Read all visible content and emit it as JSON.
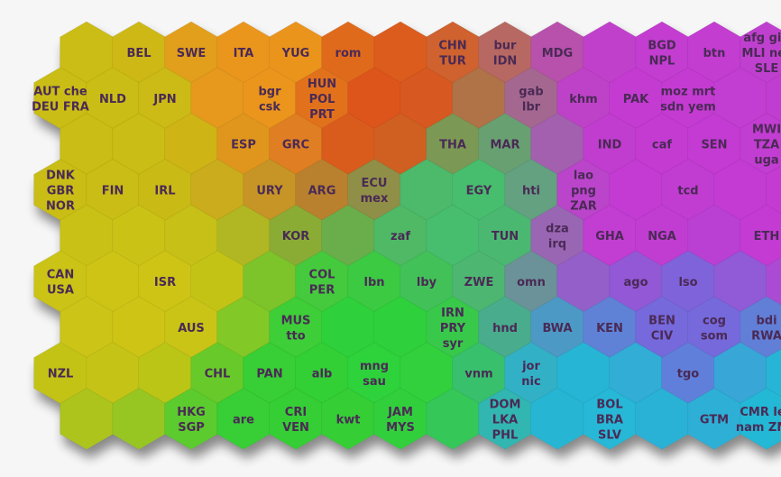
{
  "chart_data": {
    "type": "heatmap",
    "title": "",
    "grid": {
      "cols": 15,
      "rows": 9,
      "layout": "hexagonal"
    },
    "cells": [
      {
        "col": 1,
        "row": 0,
        "labels": [
          "BEL"
        ]
      },
      {
        "col": 2,
        "row": 0,
        "labels": [
          "SWE"
        ]
      },
      {
        "col": 3,
        "row": 0,
        "labels": [
          "ITA"
        ]
      },
      {
        "col": 4,
        "row": 0,
        "labels": [
          "YUG"
        ]
      },
      {
        "col": 5,
        "row": 0,
        "labels": [
          "rom"
        ]
      },
      {
        "col": 7,
        "row": 0,
        "labels": [
          "CHN",
          "TUR"
        ]
      },
      {
        "col": 8,
        "row": 0,
        "labels": [
          "bur",
          "IDN"
        ]
      },
      {
        "col": 9,
        "row": 0,
        "labels": [
          "MDG"
        ]
      },
      {
        "col": 11,
        "row": 0,
        "labels": [
          "BGD",
          "NPL"
        ]
      },
      {
        "col": 12,
        "row": 0,
        "labels": [
          "btn"
        ]
      },
      {
        "col": 13,
        "row": 0,
        "labels": [
          "afg gin",
          "MLI ner",
          "SLE"
        ]
      },
      {
        "col": 0,
        "row": 1,
        "labels": [
          "AUT che",
          "DEU FRA"
        ]
      },
      {
        "col": 1,
        "row": 1,
        "labels": [
          "NLD"
        ]
      },
      {
        "col": 2,
        "row": 1,
        "labels": [
          "JPN"
        ]
      },
      {
        "col": 4,
        "row": 1,
        "labels": [
          "bgr",
          "csk"
        ]
      },
      {
        "col": 5,
        "row": 1,
        "labels": [
          "HUN",
          "POL",
          "PRT"
        ]
      },
      {
        "col": 9,
        "row": 1,
        "labels": [
          "gab",
          "lbr"
        ]
      },
      {
        "col": 10,
        "row": 1,
        "labels": [
          "khm"
        ]
      },
      {
        "col": 11,
        "row": 1,
        "labels": [
          "PAK"
        ]
      },
      {
        "col": 12,
        "row": 1,
        "labels": [
          "moz mrt",
          "sdn yem"
        ]
      },
      {
        "col": 3,
        "row": 2,
        "labels": [
          "ESP"
        ]
      },
      {
        "col": 4,
        "row": 2,
        "labels": [
          "GRC"
        ]
      },
      {
        "col": 7,
        "row": 2,
        "labels": [
          "THA"
        ]
      },
      {
        "col": 8,
        "row": 2,
        "labels": [
          "MAR"
        ]
      },
      {
        "col": 10,
        "row": 2,
        "labels": [
          "IND"
        ]
      },
      {
        "col": 11,
        "row": 2,
        "labels": [
          "caf"
        ]
      },
      {
        "col": 12,
        "row": 2,
        "labels": [
          "SEN"
        ]
      },
      {
        "col": 13,
        "row": 2,
        "labels": [
          "MWI",
          "TZA",
          "uga"
        ]
      },
      {
        "col": 0,
        "row": 3,
        "labels": [
          "DNK",
          "GBR",
          "NOR"
        ]
      },
      {
        "col": 1,
        "row": 3,
        "labels": [
          "FIN"
        ]
      },
      {
        "col": 2,
        "row": 3,
        "labels": [
          "IRL"
        ]
      },
      {
        "col": 4,
        "row": 3,
        "labels": [
          "URY"
        ]
      },
      {
        "col": 5,
        "row": 3,
        "labels": [
          "ARG"
        ]
      },
      {
        "col": 6,
        "row": 3,
        "labels": [
          "ECU",
          "mex"
        ]
      },
      {
        "col": 8,
        "row": 3,
        "labels": [
          "EGY"
        ]
      },
      {
        "col": 9,
        "row": 3,
        "labels": [
          "hti"
        ]
      },
      {
        "col": 10,
        "row": 3,
        "labels": [
          "lao",
          "png",
          "ZAR"
        ]
      },
      {
        "col": 12,
        "row": 3,
        "labels": [
          "tcd"
        ]
      },
      {
        "col": 4,
        "row": 4,
        "labels": [
          "KOR"
        ]
      },
      {
        "col": 6,
        "row": 4,
        "labels": [
          "zaf"
        ]
      },
      {
        "col": 8,
        "row": 4,
        "labels": [
          "TUN"
        ]
      },
      {
        "col": 9,
        "row": 4,
        "labels": [
          "dza",
          "irq"
        ]
      },
      {
        "col": 10,
        "row": 4,
        "labels": [
          "GHA"
        ]
      },
      {
        "col": 11,
        "row": 4,
        "labels": [
          "NGA"
        ]
      },
      {
        "col": 13,
        "row": 4,
        "labels": [
          "ETH"
        ]
      },
      {
        "col": 0,
        "row": 5,
        "labels": [
          "CAN",
          "USA"
        ]
      },
      {
        "col": 2,
        "row": 5,
        "labels": [
          "ISR"
        ]
      },
      {
        "col": 5,
        "row": 5,
        "labels": [
          "COL",
          "PER"
        ]
      },
      {
        "col": 6,
        "row": 5,
        "labels": [
          "lbn"
        ]
      },
      {
        "col": 7,
        "row": 5,
        "labels": [
          "lby"
        ]
      },
      {
        "col": 8,
        "row": 5,
        "labels": [
          "ZWE"
        ]
      },
      {
        "col": 9,
        "row": 5,
        "labels": [
          "omn"
        ]
      },
      {
        "col": 11,
        "row": 5,
        "labels": [
          "ago"
        ]
      },
      {
        "col": 12,
        "row": 5,
        "labels": [
          "lso"
        ]
      },
      {
        "col": 2,
        "row": 6,
        "labels": [
          "AUS"
        ]
      },
      {
        "col": 4,
        "row": 6,
        "labels": [
          "MUS",
          "tto"
        ]
      },
      {
        "col": 7,
        "row": 6,
        "labels": [
          "IRN",
          "PRY",
          "syr"
        ]
      },
      {
        "col": 8,
        "row": 6,
        "labels": [
          "hnd"
        ]
      },
      {
        "col": 9,
        "row": 6,
        "labels": [
          "BWA"
        ]
      },
      {
        "col": 10,
        "row": 6,
        "labels": [
          "KEN"
        ]
      },
      {
        "col": 11,
        "row": 6,
        "labels": [
          "BEN",
          "CIV"
        ]
      },
      {
        "col": 12,
        "row": 6,
        "labels": [
          "cog",
          "som"
        ]
      },
      {
        "col": 13,
        "row": 6,
        "labels": [
          "bdi",
          "RWA"
        ]
      },
      {
        "col": 0,
        "row": 7,
        "labels": [
          "NZL"
        ]
      },
      {
        "col": 3,
        "row": 7,
        "labels": [
          "CHL"
        ]
      },
      {
        "col": 4,
        "row": 7,
        "labels": [
          "PAN"
        ]
      },
      {
        "col": 5,
        "row": 7,
        "labels": [
          "alb"
        ]
      },
      {
        "col": 6,
        "row": 7,
        "labels": [
          "mng",
          "sau"
        ]
      },
      {
        "col": 8,
        "row": 7,
        "labels": [
          "vnm"
        ]
      },
      {
        "col": 9,
        "row": 7,
        "labels": [
          "jor",
          "nic"
        ]
      },
      {
        "col": 12,
        "row": 7,
        "labels": [
          "tgo"
        ]
      },
      {
        "col": 2,
        "row": 8,
        "labels": [
          "HKG",
          "SGP"
        ]
      },
      {
        "col": 3,
        "row": 8,
        "labels": [
          "are"
        ]
      },
      {
        "col": 4,
        "row": 8,
        "labels": [
          "CRI",
          "VEN"
        ]
      },
      {
        "col": 5,
        "row": 8,
        "labels": [
          "kwt"
        ]
      },
      {
        "col": 6,
        "row": 8,
        "labels": [
          "JAM",
          "MYS"
        ]
      },
      {
        "col": 8,
        "row": 8,
        "labels": [
          "DOM",
          "LKA",
          "PHL"
        ]
      },
      {
        "col": 10,
        "row": 8,
        "labels": [
          "BOL",
          "BRA",
          "SLV"
        ]
      },
      {
        "col": 12,
        "row": 8,
        "labels": [
          "GTM"
        ]
      },
      {
        "col": 13,
        "row": 8,
        "labels": [
          "CMR leo",
          "nam ZMB"
        ]
      }
    ],
    "cluster_colors": {
      "europe_yellow": "#ccc010",
      "eastern_orange": "#dc5a1c",
      "latin_green": "#2ed23a",
      "asia_africa_magenta": "#c53ad0",
      "developing_cyan": "#24b8d6",
      "transition_blue": "#7a6ad8"
    }
  }
}
